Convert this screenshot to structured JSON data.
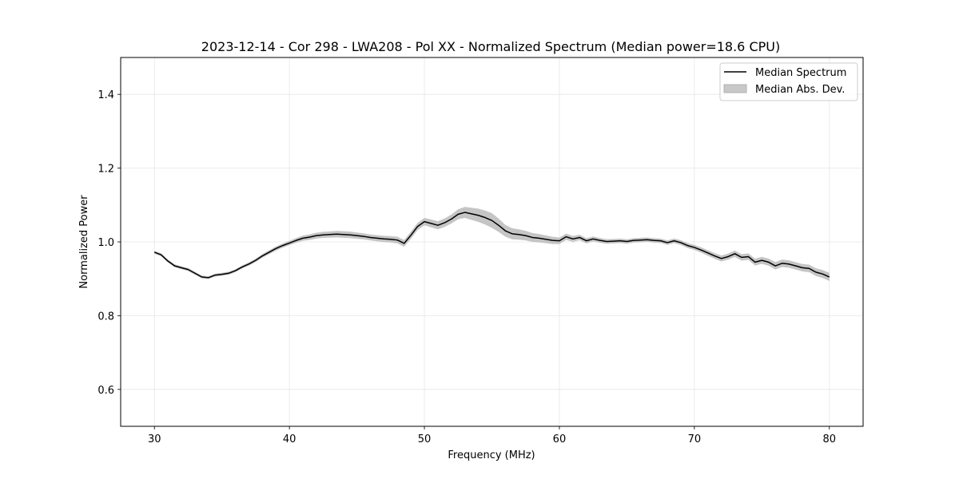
{
  "chart_data": {
    "type": "line",
    "title": "2023-12-14 - Cor 298 - LWA208 - Pol XX - Normalized Spectrum (Median power=18.6 CPU)",
    "xlabel": "Frequency (MHz)",
    "ylabel": "Normalized Power",
    "xlim": [
      27.5,
      82.5
    ],
    "ylim": [
      0.5,
      1.5
    ],
    "xticks": [
      30,
      40,
      50,
      60,
      70,
      80
    ],
    "xtick_labels": [
      "30",
      "40",
      "50",
      "60",
      "70",
      "80"
    ],
    "yticks": [
      0.6,
      0.8,
      1.0,
      1.2,
      1.4
    ],
    "ytick_labels": [
      "0.6",
      "0.8",
      "1.0",
      "1.2",
      "1.4"
    ],
    "grid": true,
    "legend_placement": "top-right",
    "series": [
      {
        "name": "Median Spectrum",
        "color": "#000000",
        "x": [
          30.0,
          30.5,
          31.0,
          31.5,
          32.0,
          32.5,
          33.0,
          33.5,
          34.0,
          34.5,
          35.0,
          35.5,
          36.0,
          36.5,
          37.0,
          37.5,
          38.0,
          38.5,
          39.0,
          39.5,
          40.0,
          40.5,
          41.0,
          41.5,
          42.0,
          42.5,
          43.0,
          43.5,
          44.0,
          44.5,
          45.0,
          45.5,
          46.0,
          46.5,
          47.0,
          47.5,
          48.0,
          48.5,
          49.0,
          49.5,
          50.0,
          50.5,
          51.0,
          51.5,
          52.0,
          52.5,
          53.0,
          53.5,
          54.0,
          54.5,
          55.0,
          55.5,
          56.0,
          56.5,
          57.0,
          57.5,
          58.0,
          58.5,
          59.0,
          59.5,
          60.0,
          60.5,
          61.0,
          61.5,
          62.0,
          62.5,
          63.0,
          63.5,
          64.0,
          64.5,
          65.0,
          65.5,
          66.0,
          66.5,
          67.0,
          67.5,
          68.0,
          68.5,
          69.0,
          69.5,
          70.0,
          70.5,
          71.0,
          71.5,
          72.0,
          72.5,
          73.0,
          73.5,
          74.0,
          74.5,
          75.0,
          75.5,
          76.0,
          76.5,
          77.0,
          77.5,
          78.0,
          78.5,
          79.0,
          79.5,
          80.0
        ],
        "y": [
          0.972,
          0.965,
          0.948,
          0.935,
          0.93,
          0.925,
          0.915,
          0.905,
          0.903,
          0.91,
          0.912,
          0.915,
          0.922,
          0.932,
          0.94,
          0.95,
          0.962,
          0.972,
          0.982,
          0.99,
          0.997,
          1.004,
          1.01,
          1.013,
          1.017,
          1.019,
          1.02,
          1.021,
          1.02,
          1.019,
          1.017,
          1.015,
          1.012,
          1.01,
          1.008,
          1.007,
          1.005,
          0.996,
          1.018,
          1.042,
          1.055,
          1.05,
          1.045,
          1.052,
          1.062,
          1.075,
          1.08,
          1.076,
          1.072,
          1.066,
          1.058,
          1.045,
          1.03,
          1.022,
          1.02,
          1.017,
          1.012,
          1.01,
          1.007,
          1.004,
          1.003,
          1.014,
          1.008,
          1.012,
          1.003,
          1.008,
          1.004,
          1.001,
          1.002,
          1.003,
          1.001,
          1.004,
          1.005,
          1.006,
          1.004,
          1.003,
          0.998,
          1.003,
          0.998,
          0.99,
          0.985,
          0.978,
          0.97,
          0.962,
          0.955,
          0.96,
          0.968,
          0.958,
          0.96,
          0.945,
          0.95,
          0.945,
          0.935,
          0.942,
          0.94,
          0.935,
          0.93,
          0.928,
          0.918,
          0.913,
          0.905
        ]
      }
    ],
    "band": {
      "name": "Median Abs. Dev.",
      "color": "#bfbfbf",
      "x": [
        30.0,
        32.0,
        34.0,
        36.0,
        38.0,
        40.0,
        42.0,
        44.0,
        46.0,
        48.0,
        50.0,
        52.0,
        53.0,
        54.0,
        55.0,
        56.0,
        58.0,
        60.0,
        62.0,
        64.0,
        66.0,
        68.0,
        70.0,
        72.0,
        74.0,
        76.0,
        78.0,
        80.0
      ],
      "dev": [
        0.004,
        0.004,
        0.004,
        0.004,
        0.005,
        0.006,
        0.008,
        0.009,
        0.008,
        0.009,
        0.01,
        0.012,
        0.015,
        0.018,
        0.02,
        0.016,
        0.012,
        0.009,
        0.007,
        0.006,
        0.006,
        0.006,
        0.007,
        0.008,
        0.009,
        0.01,
        0.01,
        0.011
      ]
    },
    "legend": {
      "line_label": "Median Spectrum",
      "band_label": "Median Abs. Dev."
    }
  }
}
